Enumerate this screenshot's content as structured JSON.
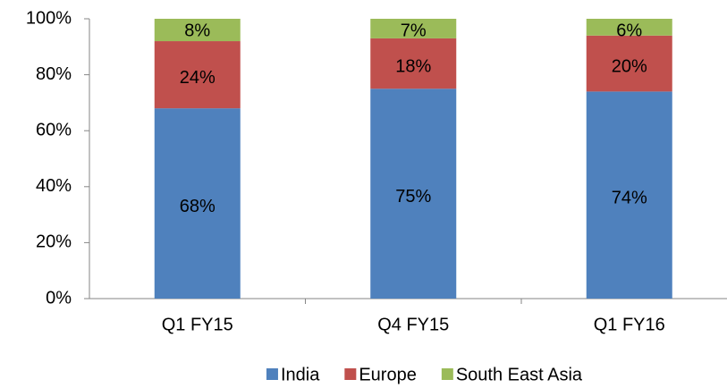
{
  "chart_data": {
    "type": "stacked_bar",
    "categories": [
      "Q1 FY15",
      "Q4 FY15",
      "Q1 FY16"
    ],
    "series": [
      {
        "name": "India",
        "color": "#4f81bd",
        "values": [
          68,
          75,
          74
        ],
        "value_labels": [
          "68%",
          "75%",
          "74%"
        ]
      },
      {
        "name": "Europe",
        "color": "#c0504d",
        "values": [
          24,
          18,
          20
        ],
        "value_labels": [
          "24%",
          "18%",
          "20%"
        ]
      },
      {
        "name": "South East Asia",
        "color": "#9bbb59",
        "values": [
          8,
          7,
          6
        ],
        "value_labels": [
          "8%",
          "7%",
          "6%"
        ]
      }
    ],
    "ylim": [
      0,
      100
    ],
    "yticks": [
      {
        "value": 0,
        "label": "0%"
      },
      {
        "value": 20,
        "label": "20%"
      },
      {
        "value": 40,
        "label": "40%"
      },
      {
        "value": 60,
        "label": "60%"
      },
      {
        "value": 80,
        "label": "80%"
      },
      {
        "value": 100,
        "label": "100%"
      }
    ],
    "legend": "bottom"
  }
}
